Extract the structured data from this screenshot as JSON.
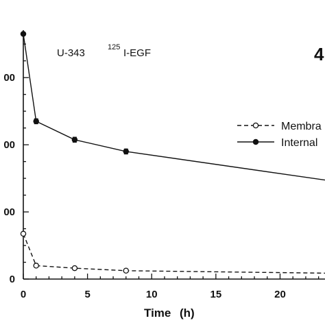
{
  "chart_data": {
    "type": "line",
    "x_label": "Time",
    "x_unit": "(h)",
    "x_ticks": [
      "0",
      "5",
      "10",
      "15",
      "20"
    ],
    "y_ticks": [
      "00",
      "00",
      "00",
      "0"
    ],
    "annotation": {
      "prefix": "U-343",
      "superscript": "125",
      "suffix": "I-EGF"
    },
    "panel_label": "4",
    "xlim": [
      0,
      23.5
    ],
    "ylim": [
      0,
      145
    ],
    "series": [
      {
        "name": "Membra",
        "style": "dashed",
        "marker": "open-circle",
        "x": [
          0,
          1,
          4,
          8,
          23.5
        ],
        "y": [
          27,
          8,
          6.5,
          5,
          3.5
        ]
      },
      {
        "name": "Internal",
        "style": "solid",
        "marker": "filled-circle",
        "x": [
          0,
          1,
          4,
          8,
          23.5
        ],
        "y": [
          146,
          94,
          83,
          76,
          59
        ],
        "err": [
          0,
          1.5,
          1.5,
          1.5,
          0
        ]
      }
    ],
    "legend_position": "right",
    "grid": false,
    "colors": {
      "line": "#111111",
      "background": "#ffffff"
    }
  }
}
